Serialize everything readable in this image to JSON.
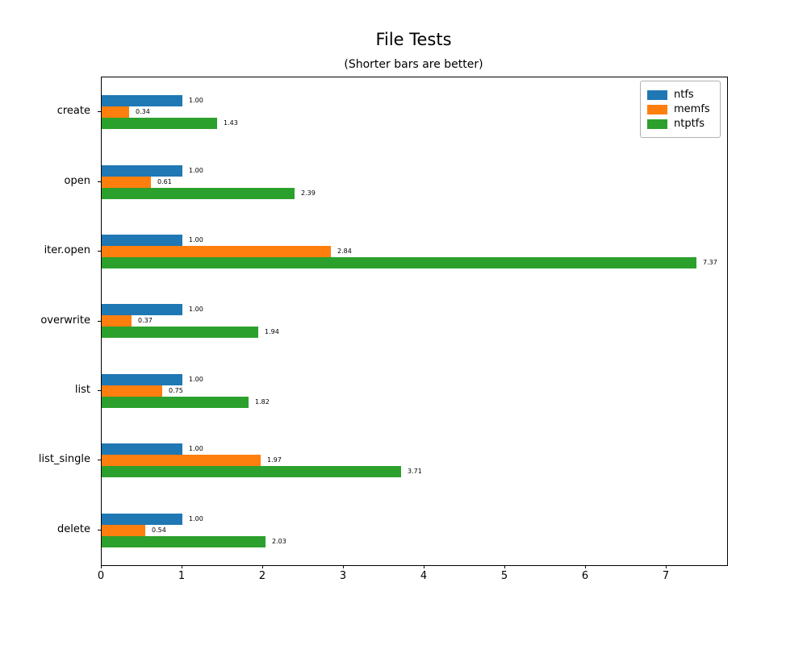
{
  "chart_data": {
    "type": "bar",
    "orientation": "horizontal",
    "title": "File Tests",
    "subtitle": "(Shorter bars are better)",
    "categories": [
      "create",
      "open",
      "iter.open",
      "overwrite",
      "list",
      "list_single",
      "delete"
    ],
    "series": [
      {
        "name": "ntfs",
        "color": "#1f77b4",
        "values": [
          1.0,
          1.0,
          1.0,
          1.0,
          1.0,
          1.0,
          1.0
        ]
      },
      {
        "name": "memfs",
        "color": "#ff7f0e",
        "values": [
          0.34,
          0.61,
          2.84,
          0.37,
          0.75,
          1.97,
          0.54
        ]
      },
      {
        "name": "ntptfs",
        "color": "#2ca02c",
        "values": [
          1.43,
          2.39,
          7.37,
          1.94,
          1.82,
          3.71,
          2.03
        ]
      }
    ],
    "value_label_format": "2dp",
    "xlim": [
      0,
      7.75
    ],
    "xticks": [
      0,
      1,
      2,
      3,
      4,
      5,
      6,
      7
    ],
    "grid": false,
    "legend_position": "upper-right"
  }
}
